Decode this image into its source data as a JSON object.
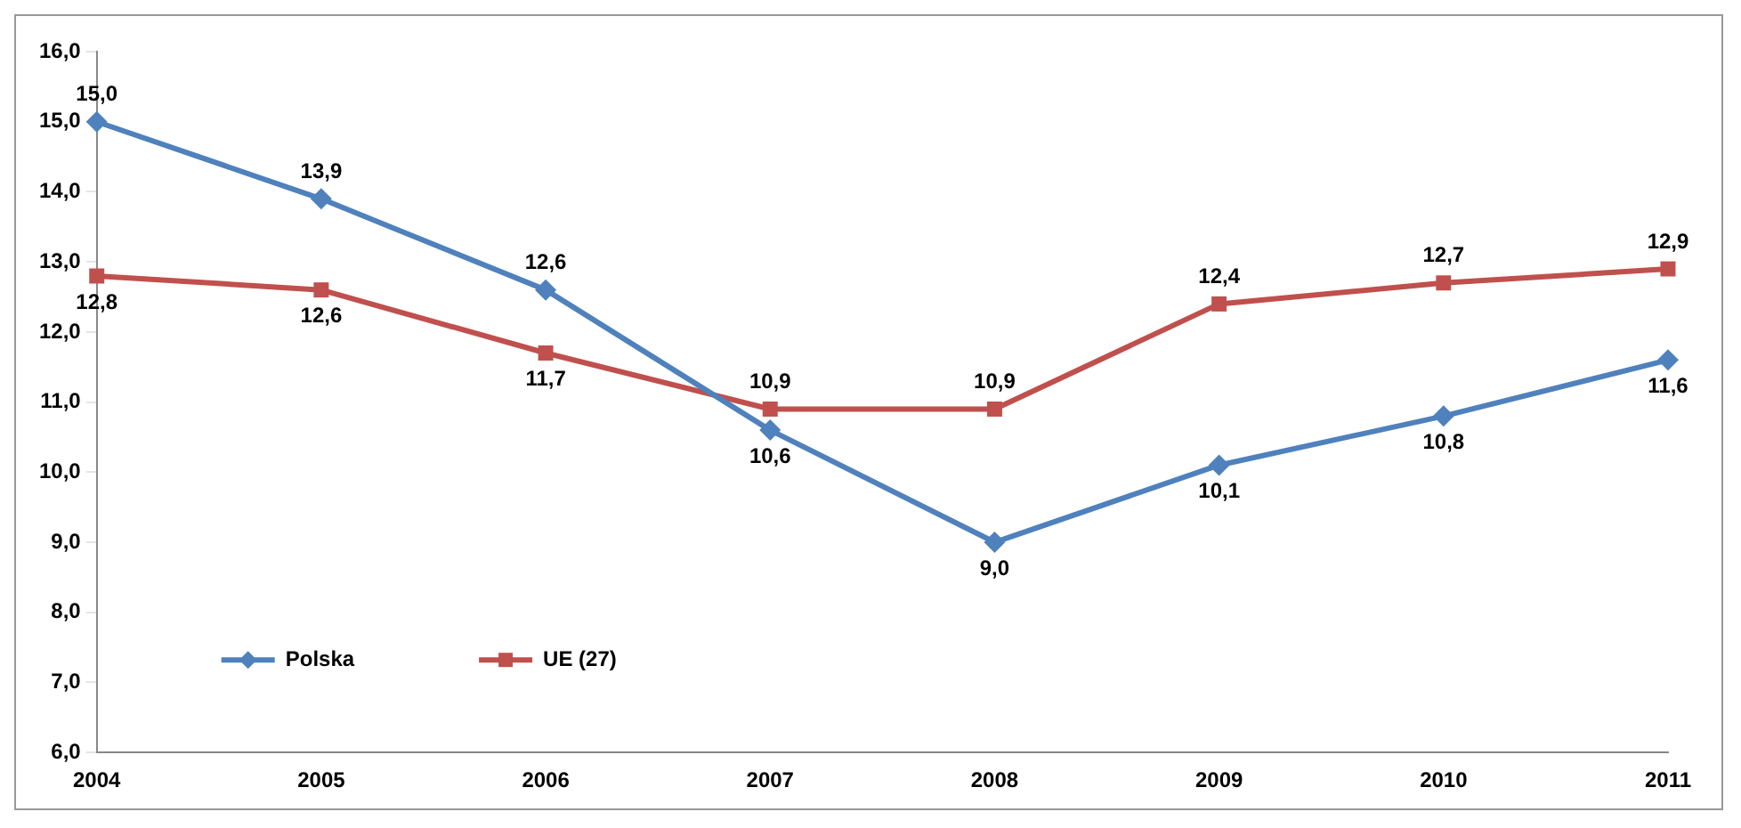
{
  "chart_data": {
    "type": "line",
    "categories": [
      "2004",
      "2005",
      "2006",
      "2007",
      "2008",
      "2009",
      "2010",
      "2011"
    ],
    "series": [
      {
        "name": "Polska",
        "color": "#4f81bd",
        "marker": "diamond",
        "values": [
          15.0,
          13.9,
          12.6,
          10.6,
          9.0,
          10.1,
          10.8,
          11.6
        ],
        "value_labels": [
          "15,0",
          "13,9",
          "12,6",
          "10,6",
          "9,0",
          "10,1",
          "10,8",
          "11,6"
        ]
      },
      {
        "name": "UE (27)",
        "color": "#c0504d",
        "marker": "square",
        "values": [
          12.8,
          12.6,
          11.7,
          10.9,
          10.9,
          12.4,
          12.7,
          12.9
        ],
        "value_labels": [
          "12,8",
          "12,6",
          "11,7",
          "10,9",
          "10,9",
          "12,4",
          "12,7",
          "12,9"
        ]
      }
    ],
    "ylim": [
      6,
      16
    ],
    "yticks": [
      {
        "value": 6,
        "label": "6,0"
      },
      {
        "value": 7,
        "label": "7,0"
      },
      {
        "value": 8,
        "label": "8,0"
      },
      {
        "value": 9,
        "label": "9,0"
      },
      {
        "value": 10,
        "label": "10,0"
      },
      {
        "value": 11,
        "label": "11,0"
      },
      {
        "value": 12,
        "label": "12,0"
      },
      {
        "value": 13,
        "label": "13,0"
      },
      {
        "value": 14,
        "label": "14,0"
      },
      {
        "value": 15,
        "label": "15,0"
      },
      {
        "value": 16,
        "label": "16,0"
      }
    ],
    "legend": "bottom left"
  }
}
